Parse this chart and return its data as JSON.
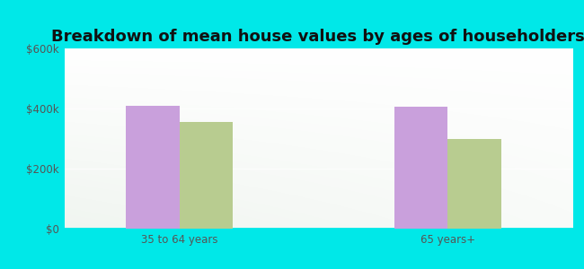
{
  "title": "Breakdown of mean house values by ages of householders",
  "categories": [
    "35 to 64 years",
    "65 years+"
  ],
  "series": {
    "Creedmoor": [
      410000,
      405000
    ],
    "Texas": [
      355000,
      300000
    ]
  },
  "bar_colors": {
    "Creedmoor": "#c9a0dc",
    "Texas": "#b8cc90"
  },
  "ylim": [
    0,
    600000
  ],
  "yticks": [
    0,
    200000,
    400000,
    600000
  ],
  "ytick_labels": [
    "$0",
    "$200k",
    "$400k",
    "$600k"
  ],
  "background_outer": "#00e8e8",
  "title_fontsize": 13,
  "bar_width": 0.28,
  "group_positions": [
    0.8,
    2.2
  ]
}
